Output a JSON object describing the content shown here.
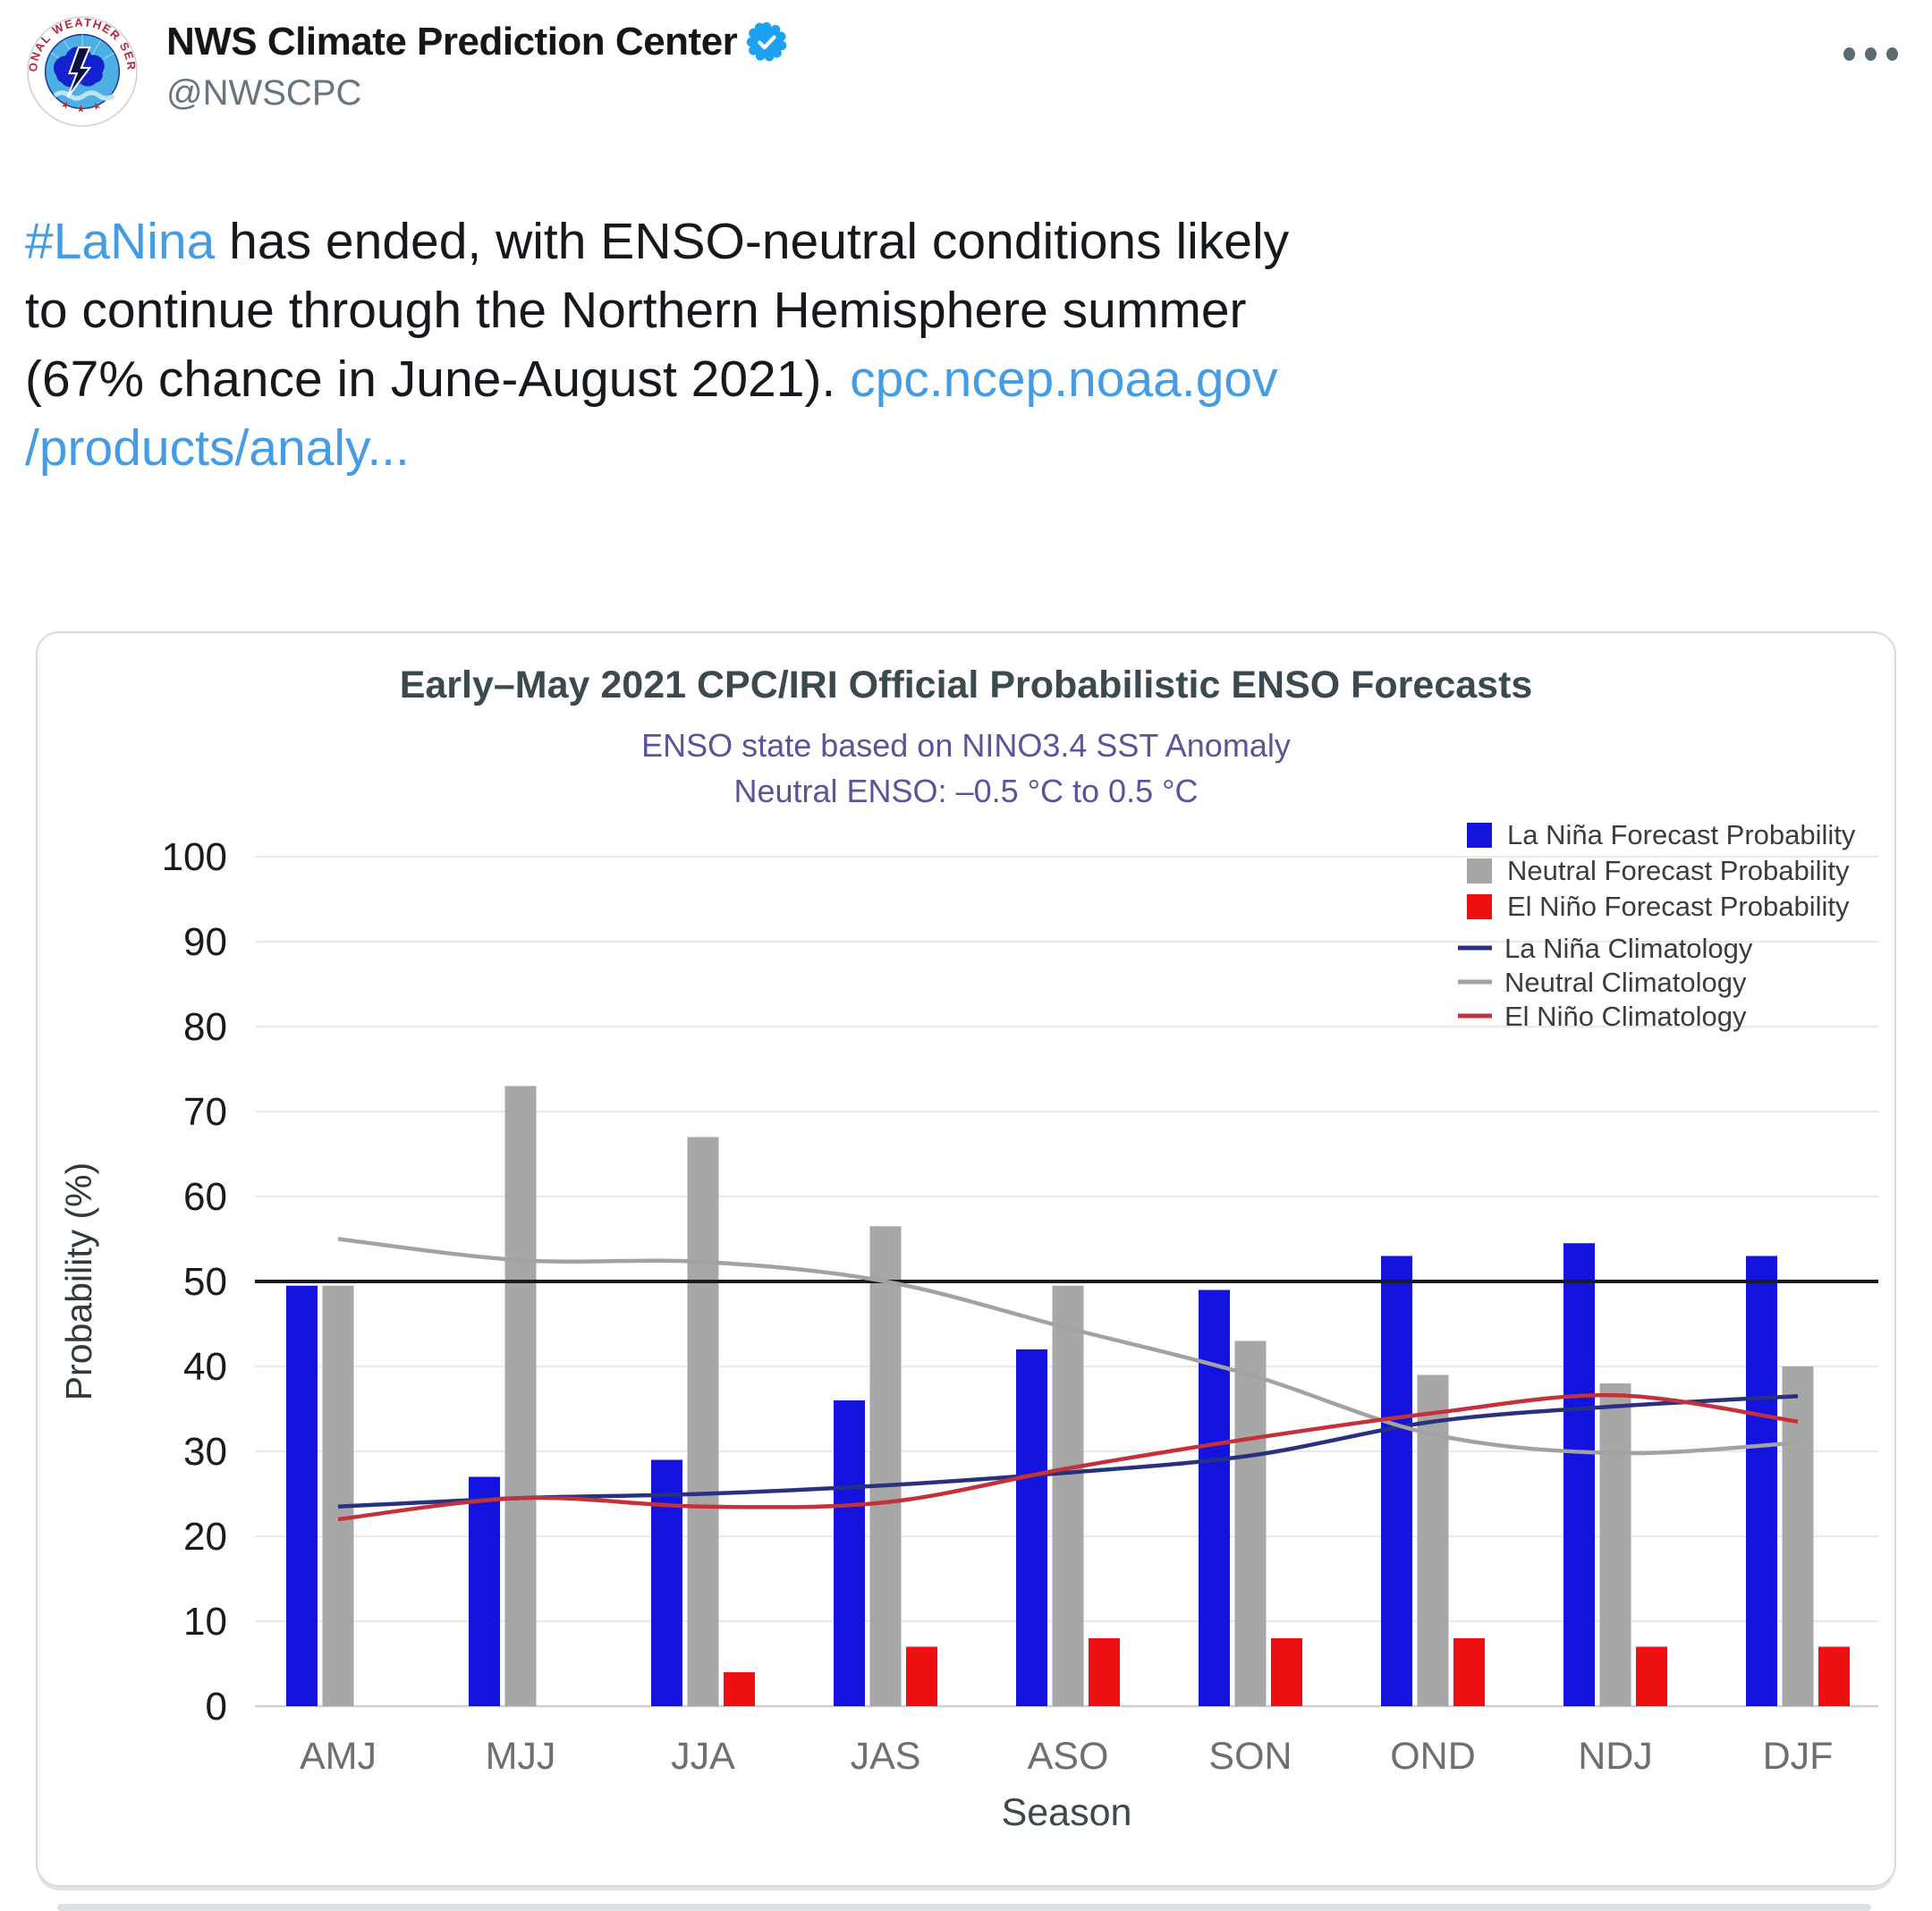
{
  "tweet": {
    "display_name": "NWS Climate Prediction Center",
    "handle": "@NWSCPC",
    "verified": "verified-badge",
    "more_label": "more-options",
    "lines": [
      [
        {
          "text": "#LaNina",
          "link": true
        },
        {
          "text": " has ended, with ENSO-neutral conditions likely",
          "link": false
        }
      ],
      [
        {
          "text": "to continue through the Northern Hemisphere summer",
          "link": false
        }
      ],
      [
        {
          "text": "(67% chance in June-August 2021). ",
          "link": false
        },
        {
          "text": "cpc.ncep.noaa.gov",
          "link": true
        }
      ],
      [
        {
          "text": "/products/analy...",
          "link": true
        }
      ]
    ]
  },
  "colors": {
    "link": "#459ce5",
    "name": "#14171a",
    "handle": "#66757f",
    "verified_blue": "#1da1f2",
    "la_nina_bar": "#1313dd",
    "neutral_bar": "#a7a7a7",
    "el_nino_bar": "#ee1010",
    "la_nina_line": "#28317e",
    "neutral_line": "#a2a2a2",
    "el_nino_line": "#c4313a",
    "reference_line": "#191c1e",
    "grid": "#e9e9e9",
    "axis_line": "#c9d2d8",
    "title": "#3b4a4e",
    "subtitle": "#5a5499",
    "x_tick": "#6f6f6f",
    "y_tick": "#1b1b1b",
    "legend_text": "#3c3c3c"
  },
  "chart_data": {
    "type": "bar",
    "title": "Early–May 2021 CPC/IRI Official Probabilistic ENSO Forecasts",
    "subtitle1": "ENSO state based on NINO3.4 SST Anomaly",
    "subtitle2": "Neutral ENSO: –0.5 °C to 0.5 °C",
    "xlabel": "Season",
    "ylabel": "Probability (%)",
    "ylim": [
      0,
      100
    ],
    "y_ticks": [
      0,
      10,
      20,
      30,
      40,
      50,
      60,
      70,
      80,
      90,
      100
    ],
    "reference_line": 50,
    "grid": true,
    "legend_position": "top-right",
    "categories": [
      "AMJ",
      "MJJ",
      "JJA",
      "JAS",
      "ASO",
      "SON",
      "OND",
      "NDJ",
      "DJF"
    ],
    "series": [
      {
        "name": "La Niña Forecast Probability",
        "kind": "bar",
        "color_key": "la_nina_bar",
        "values": [
          49.5,
          27,
          29,
          36,
          42,
          49,
          53,
          54.5,
          53
        ]
      },
      {
        "name": "Neutral Forecast Probability",
        "kind": "bar",
        "color_key": "neutral_bar",
        "values": [
          49.5,
          73,
          67,
          56.5,
          49.5,
          43,
          39,
          38,
          40
        ]
      },
      {
        "name": "El Niño Forecast Probability",
        "kind": "bar",
        "color_key": "el_nino_bar",
        "values": [
          0,
          0,
          4,
          7,
          8,
          8,
          8,
          7,
          7
        ]
      },
      {
        "name": "La Niña Climatology",
        "kind": "line",
        "color_key": "la_nina_line",
        "values": [
          23.5,
          24.5,
          25,
          26,
          27.5,
          29.5,
          33.5,
          35.3,
          36.5
        ]
      },
      {
        "name": "Neutral Climatology",
        "kind": "line",
        "color_key": "neutral_line",
        "values": [
          55,
          52.5,
          52.3,
          50,
          44.5,
          39,
          32,
          29.8,
          31
        ]
      },
      {
        "name": "El Niño Climatology",
        "kind": "line",
        "color_key": "el_nino_line",
        "values": [
          22,
          24.5,
          23.5,
          24,
          28,
          31.5,
          34.5,
          36.6,
          33.5
        ]
      }
    ]
  }
}
